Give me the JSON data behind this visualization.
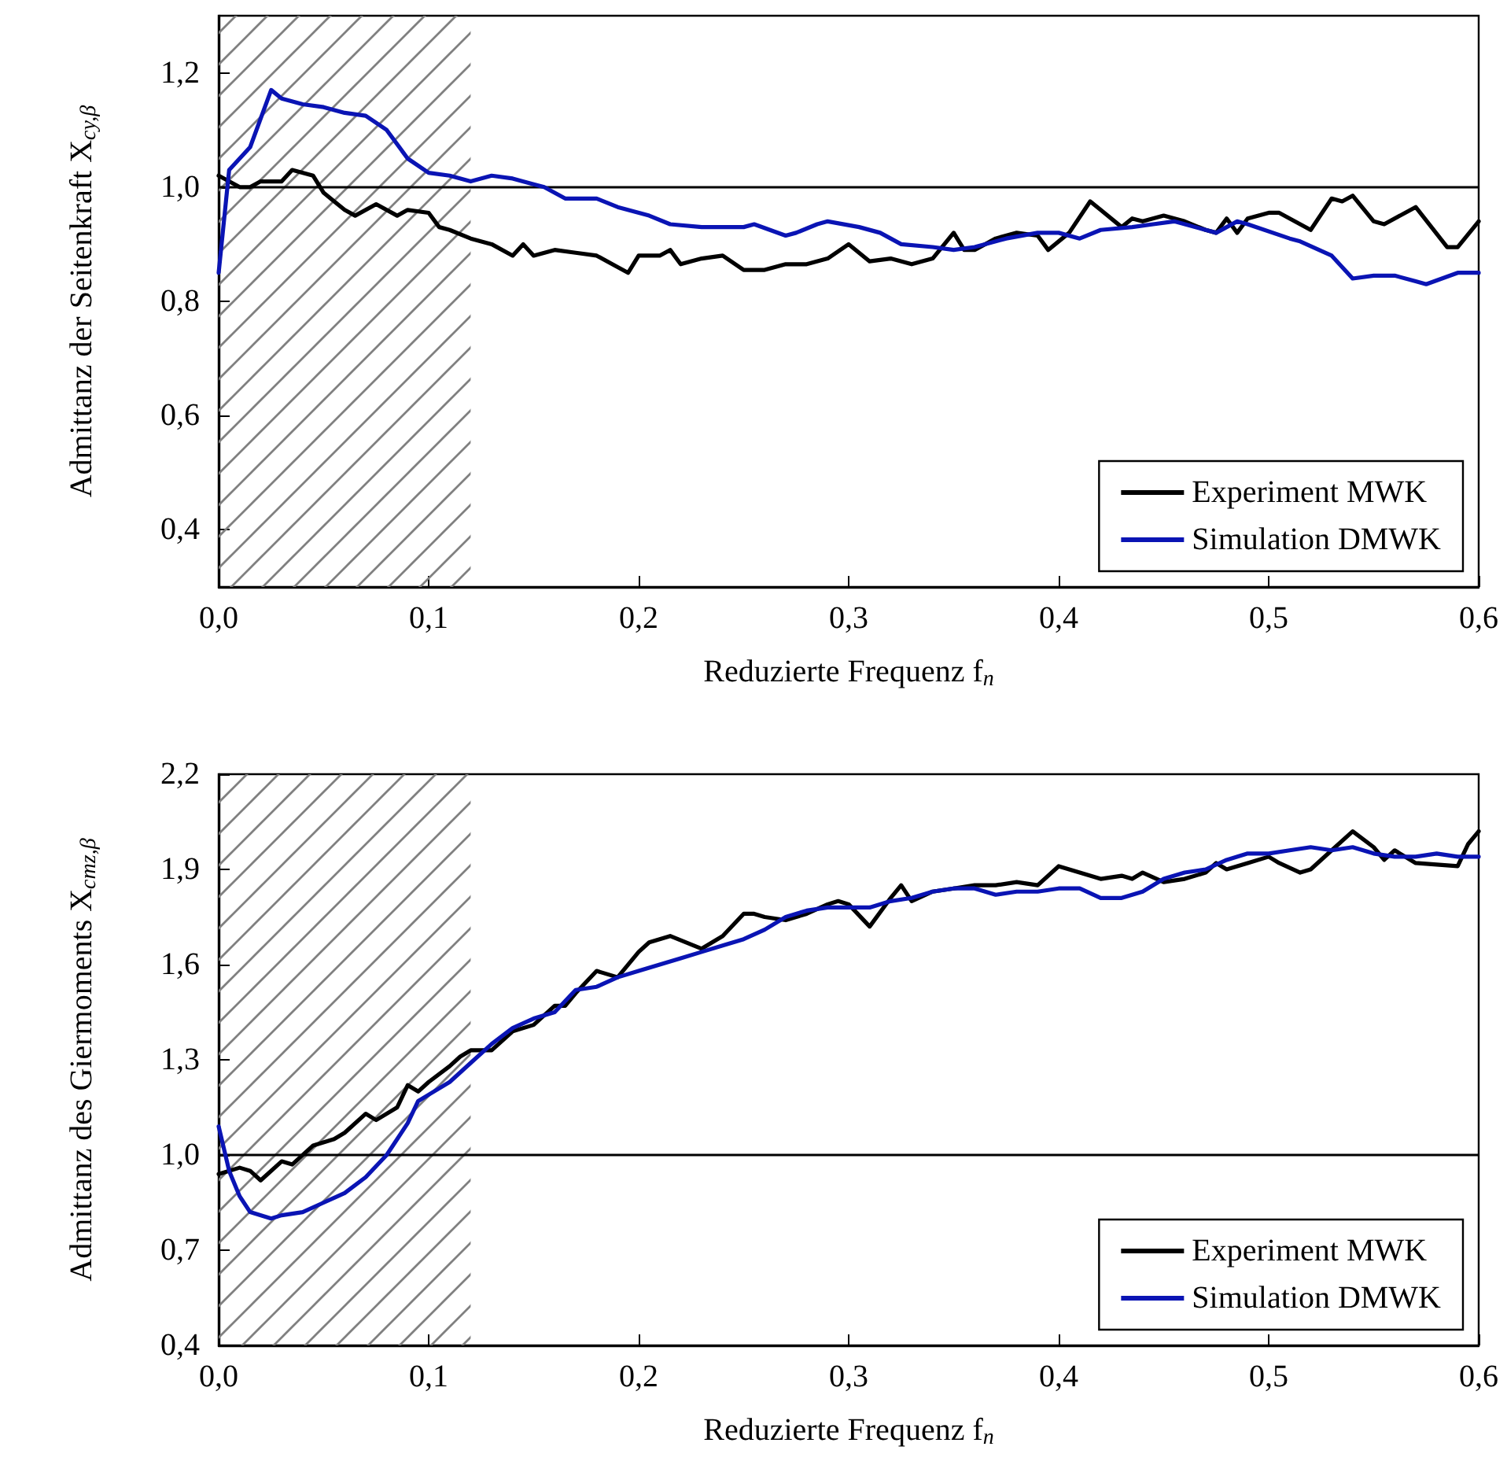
{
  "chart_data": [
    {
      "type": "line",
      "xlabel": "Reduzierte Frequenz f$_{n}$",
      "ylabel": "Admittanz der Seitenkraft X$_{cy,β}$",
      "xlim": [
        0,
        0.6
      ],
      "xticks": [
        {
          "value": 0,
          "label": "0,0"
        },
        {
          "value": 0.1,
          "label": "0,1"
        },
        {
          "value": 0.2,
          "label": "0,2"
        },
        {
          "value": 0.3,
          "label": "0,3"
        },
        {
          "value": 0.4,
          "label": "0,4"
        },
        {
          "value": 0.5,
          "label": "0,5"
        },
        {
          "value": 0.6,
          "label": "0,6"
        }
      ],
      "ylim": [
        0.3,
        1.3
      ],
      "yticks": [
        {
          "value": 0.4,
          "label": "0,4"
        },
        {
          "value": 0.6,
          "label": "0,6"
        },
        {
          "value": 0.8,
          "label": "0,8"
        },
        {
          "value": 1.0,
          "label": "1,0"
        },
        {
          "value": 1.2,
          "label": "1,2"
        }
      ],
      "grid": false,
      "legend": "bottom right",
      "marker": "none",
      "line_style": "solid",
      "ref_lines": [
        {
          "axis": "y",
          "value": 1.0,
          "color": "#000000"
        }
      ],
      "bands": [
        {
          "axis": "x",
          "from": 0,
          "to": 0.12,
          "color": "#808080"
        }
      ],
      "series": [
        {
          "name": "Experiment MWK",
          "color": "#000000",
          "x": [
            0,
            0.01,
            0.015,
            0.02,
            0.03,
            0.035,
            0.045,
            0.05,
            0.06,
            0.065,
            0.075,
            0.085,
            0.09,
            0.1,
            0.105,
            0.11,
            0.12,
            0.13,
            0.14,
            0.145,
            0.15,
            0.16,
            0.17,
            0.18,
            0.19,
            0.195,
            0.2,
            0.21,
            0.215,
            0.22,
            0.23,
            0.24,
            0.25,
            0.26,
            0.27,
            0.28,
            0.29,
            0.3,
            0.31,
            0.32,
            0.33,
            0.34,
            0.35,
            0.355,
            0.36,
            0.37,
            0.38,
            0.39,
            0.395,
            0.405,
            0.415,
            0.42,
            0.43,
            0.435,
            0.44,
            0.45,
            0.46,
            0.47,
            0.475,
            0.48,
            0.485,
            0.49,
            0.5,
            0.505,
            0.515,
            0.52,
            0.53,
            0.535,
            0.54,
            0.55,
            0.555,
            0.565,
            0.57,
            0.585,
            0.59,
            0.6
          ],
          "values": [
            1.02,
            1.0,
            1.0,
            1.01,
            1.01,
            1.03,
            1.02,
            0.99,
            0.96,
            0.95,
            0.97,
            0.95,
            0.96,
            0.955,
            0.93,
            0.925,
            0.91,
            0.9,
            0.88,
            0.9,
            0.88,
            0.89,
            0.885,
            0.88,
            0.86,
            0.85,
            0.88,
            0.88,
            0.89,
            0.865,
            0.875,
            0.88,
            0.855,
            0.855,
            0.865,
            0.865,
            0.875,
            0.9,
            0.87,
            0.875,
            0.865,
            0.875,
            0.92,
            0.89,
            0.89,
            0.91,
            0.92,
            0.915,
            0.89,
            0.92,
            0.975,
            0.96,
            0.93,
            0.945,
            0.94,
            0.95,
            0.94,
            0.925,
            0.92,
            0.945,
            0.92,
            0.945,
            0.955,
            0.955,
            0.935,
            0.925,
            0.98,
            0.975,
            0.985,
            0.94,
            0.935,
            0.955,
            0.965,
            0.895,
            0.895,
            0.94
          ]
        },
        {
          "name": "Simulation DMWK",
          "color": "#0a14b4",
          "x": [
            0,
            0.005,
            0.015,
            0.025,
            0.03,
            0.04,
            0.05,
            0.06,
            0.07,
            0.08,
            0.09,
            0.1,
            0.11,
            0.12,
            0.13,
            0.14,
            0.15,
            0.155,
            0.165,
            0.18,
            0.19,
            0.205,
            0.215,
            0.23,
            0.25,
            0.255,
            0.27,
            0.275,
            0.285,
            0.29,
            0.305,
            0.315,
            0.325,
            0.34,
            0.35,
            0.36,
            0.375,
            0.39,
            0.4,
            0.41,
            0.42,
            0.435,
            0.445,
            0.455,
            0.47,
            0.475,
            0.485,
            0.49,
            0.51,
            0.515,
            0.53,
            0.54,
            0.55,
            0.56,
            0.57,
            0.575,
            0.59,
            0.6
          ],
          "values": [
            0.85,
            1.03,
            1.07,
            1.17,
            1.155,
            1.145,
            1.14,
            1.13,
            1.125,
            1.1,
            1.05,
            1.025,
            1.02,
            1.01,
            1.02,
            1.015,
            1.005,
            1.0,
            0.98,
            0.98,
            0.965,
            0.95,
            0.935,
            0.93,
            0.93,
            0.935,
            0.915,
            0.92,
            0.935,
            0.94,
            0.93,
            0.92,
            0.9,
            0.895,
            0.89,
            0.895,
            0.91,
            0.92,
            0.92,
            0.91,
            0.925,
            0.93,
            0.935,
            0.94,
            0.925,
            0.92,
            0.94,
            0.935,
            0.91,
            0.905,
            0.88,
            0.84,
            0.845,
            0.845,
            0.835,
            0.83,
            0.85,
            0.85
          ]
        }
      ]
    },
    {
      "type": "line",
      "xlabel": "Reduzierte Frequenz f$_{n}$",
      "ylabel": "Admittanz des Giermoments X$_{cmz,β}$",
      "xlim": [
        0,
        0.6
      ],
      "xticks": [
        {
          "value": 0,
          "label": "0,0"
        },
        {
          "value": 0.1,
          "label": "0,1"
        },
        {
          "value": 0.2,
          "label": "0,2"
        },
        {
          "value": 0.3,
          "label": "0,3"
        },
        {
          "value": 0.4,
          "label": "0,4"
        },
        {
          "value": 0.5,
          "label": "0,5"
        },
        {
          "value": 0.6,
          "label": "0,6"
        }
      ],
      "ylim": [
        0.4,
        2.2
      ],
      "yticks": [
        {
          "value": 0.4,
          "label": "0,4"
        },
        {
          "value": 0.7,
          "label": "0,7"
        },
        {
          "value": 1.0,
          "label": "1,0"
        },
        {
          "value": 1.3,
          "label": "1,3"
        },
        {
          "value": 1.6,
          "label": "1,6"
        },
        {
          "value": 1.9,
          "label": "1,9"
        },
        {
          "value": 2.2,
          "label": "2,2"
        }
      ],
      "grid": false,
      "legend": "bottom right",
      "marker": "none",
      "line_style": "solid",
      "ref_lines": [
        {
          "axis": "y",
          "value": 1.0,
          "color": "#000000"
        }
      ],
      "bands": [
        {
          "axis": "x",
          "from": 0,
          "to": 0.12,
          "color": "#808080"
        }
      ],
      "series": [
        {
          "name": "Experiment MWK",
          "color": "#000000",
          "x": [
            0,
            0.01,
            0.015,
            0.02,
            0.03,
            0.035,
            0.045,
            0.055,
            0.06,
            0.07,
            0.075,
            0.085,
            0.09,
            0.095,
            0.1,
            0.11,
            0.115,
            0.12,
            0.13,
            0.14,
            0.15,
            0.16,
            0.165,
            0.17,
            0.18,
            0.19,
            0.2,
            0.205,
            0.215,
            0.23,
            0.24,
            0.25,
            0.255,
            0.26,
            0.27,
            0.28,
            0.29,
            0.295,
            0.3,
            0.31,
            0.32,
            0.325,
            0.33,
            0.34,
            0.35,
            0.36,
            0.37,
            0.38,
            0.39,
            0.4,
            0.41,
            0.42,
            0.43,
            0.435,
            0.44,
            0.45,
            0.46,
            0.47,
            0.475,
            0.48,
            0.49,
            0.5,
            0.505,
            0.515,
            0.52,
            0.53,
            0.54,
            0.55,
            0.555,
            0.56,
            0.57,
            0.59,
            0.595,
            0.6
          ],
          "values": [
            0.94,
            0.96,
            0.95,
            0.92,
            0.98,
            0.97,
            1.03,
            1.05,
            1.07,
            1.13,
            1.11,
            1.15,
            1.22,
            1.2,
            1.23,
            1.28,
            1.31,
            1.33,
            1.33,
            1.39,
            1.41,
            1.47,
            1.47,
            1.51,
            1.58,
            1.56,
            1.64,
            1.67,
            1.69,
            1.65,
            1.69,
            1.76,
            1.76,
            1.75,
            1.74,
            1.76,
            1.79,
            1.8,
            1.79,
            1.72,
            1.81,
            1.85,
            1.8,
            1.83,
            1.84,
            1.85,
            1.85,
            1.86,
            1.85,
            1.91,
            1.89,
            1.87,
            1.88,
            1.87,
            1.89,
            1.86,
            1.87,
            1.89,
            1.92,
            1.9,
            1.92,
            1.94,
            1.92,
            1.89,
            1.9,
            1.96,
            2.02,
            1.97,
            1.93,
            1.96,
            1.92,
            1.91,
            1.98,
            2.02
          ]
        },
        {
          "name": "Simulation DMWK",
          "color": "#0a14b4",
          "x": [
            0,
            0.005,
            0.01,
            0.015,
            0.025,
            0.03,
            0.04,
            0.05,
            0.06,
            0.07,
            0.08,
            0.09,
            0.095,
            0.1,
            0.11,
            0.12,
            0.13,
            0.14,
            0.15,
            0.16,
            0.17,
            0.18,
            0.19,
            0.2,
            0.21,
            0.22,
            0.23,
            0.24,
            0.25,
            0.26,
            0.27,
            0.28,
            0.29,
            0.3,
            0.31,
            0.32,
            0.33,
            0.34,
            0.35,
            0.36,
            0.37,
            0.38,
            0.39,
            0.4,
            0.41,
            0.42,
            0.43,
            0.44,
            0.45,
            0.46,
            0.47,
            0.48,
            0.49,
            0.5,
            0.51,
            0.52,
            0.53,
            0.54,
            0.55,
            0.56,
            0.57,
            0.58,
            0.59,
            0.6
          ],
          "values": [
            1.09,
            0.95,
            0.87,
            0.82,
            0.8,
            0.81,
            0.82,
            0.85,
            0.88,
            0.93,
            1.0,
            1.1,
            1.17,
            1.19,
            1.23,
            1.29,
            1.35,
            1.4,
            1.43,
            1.45,
            1.52,
            1.53,
            1.56,
            1.58,
            1.6,
            1.62,
            1.64,
            1.66,
            1.68,
            1.71,
            1.75,
            1.77,
            1.78,
            1.78,
            1.78,
            1.8,
            1.81,
            1.83,
            1.84,
            1.84,
            1.82,
            1.83,
            1.83,
            1.84,
            1.84,
            1.81,
            1.81,
            1.83,
            1.87,
            1.89,
            1.9,
            1.93,
            1.95,
            1.95,
            1.96,
            1.97,
            1.96,
            1.97,
            1.95,
            1.94,
            1.94,
            1.95,
            1.94,
            1.94
          ]
        }
      ]
    }
  ]
}
